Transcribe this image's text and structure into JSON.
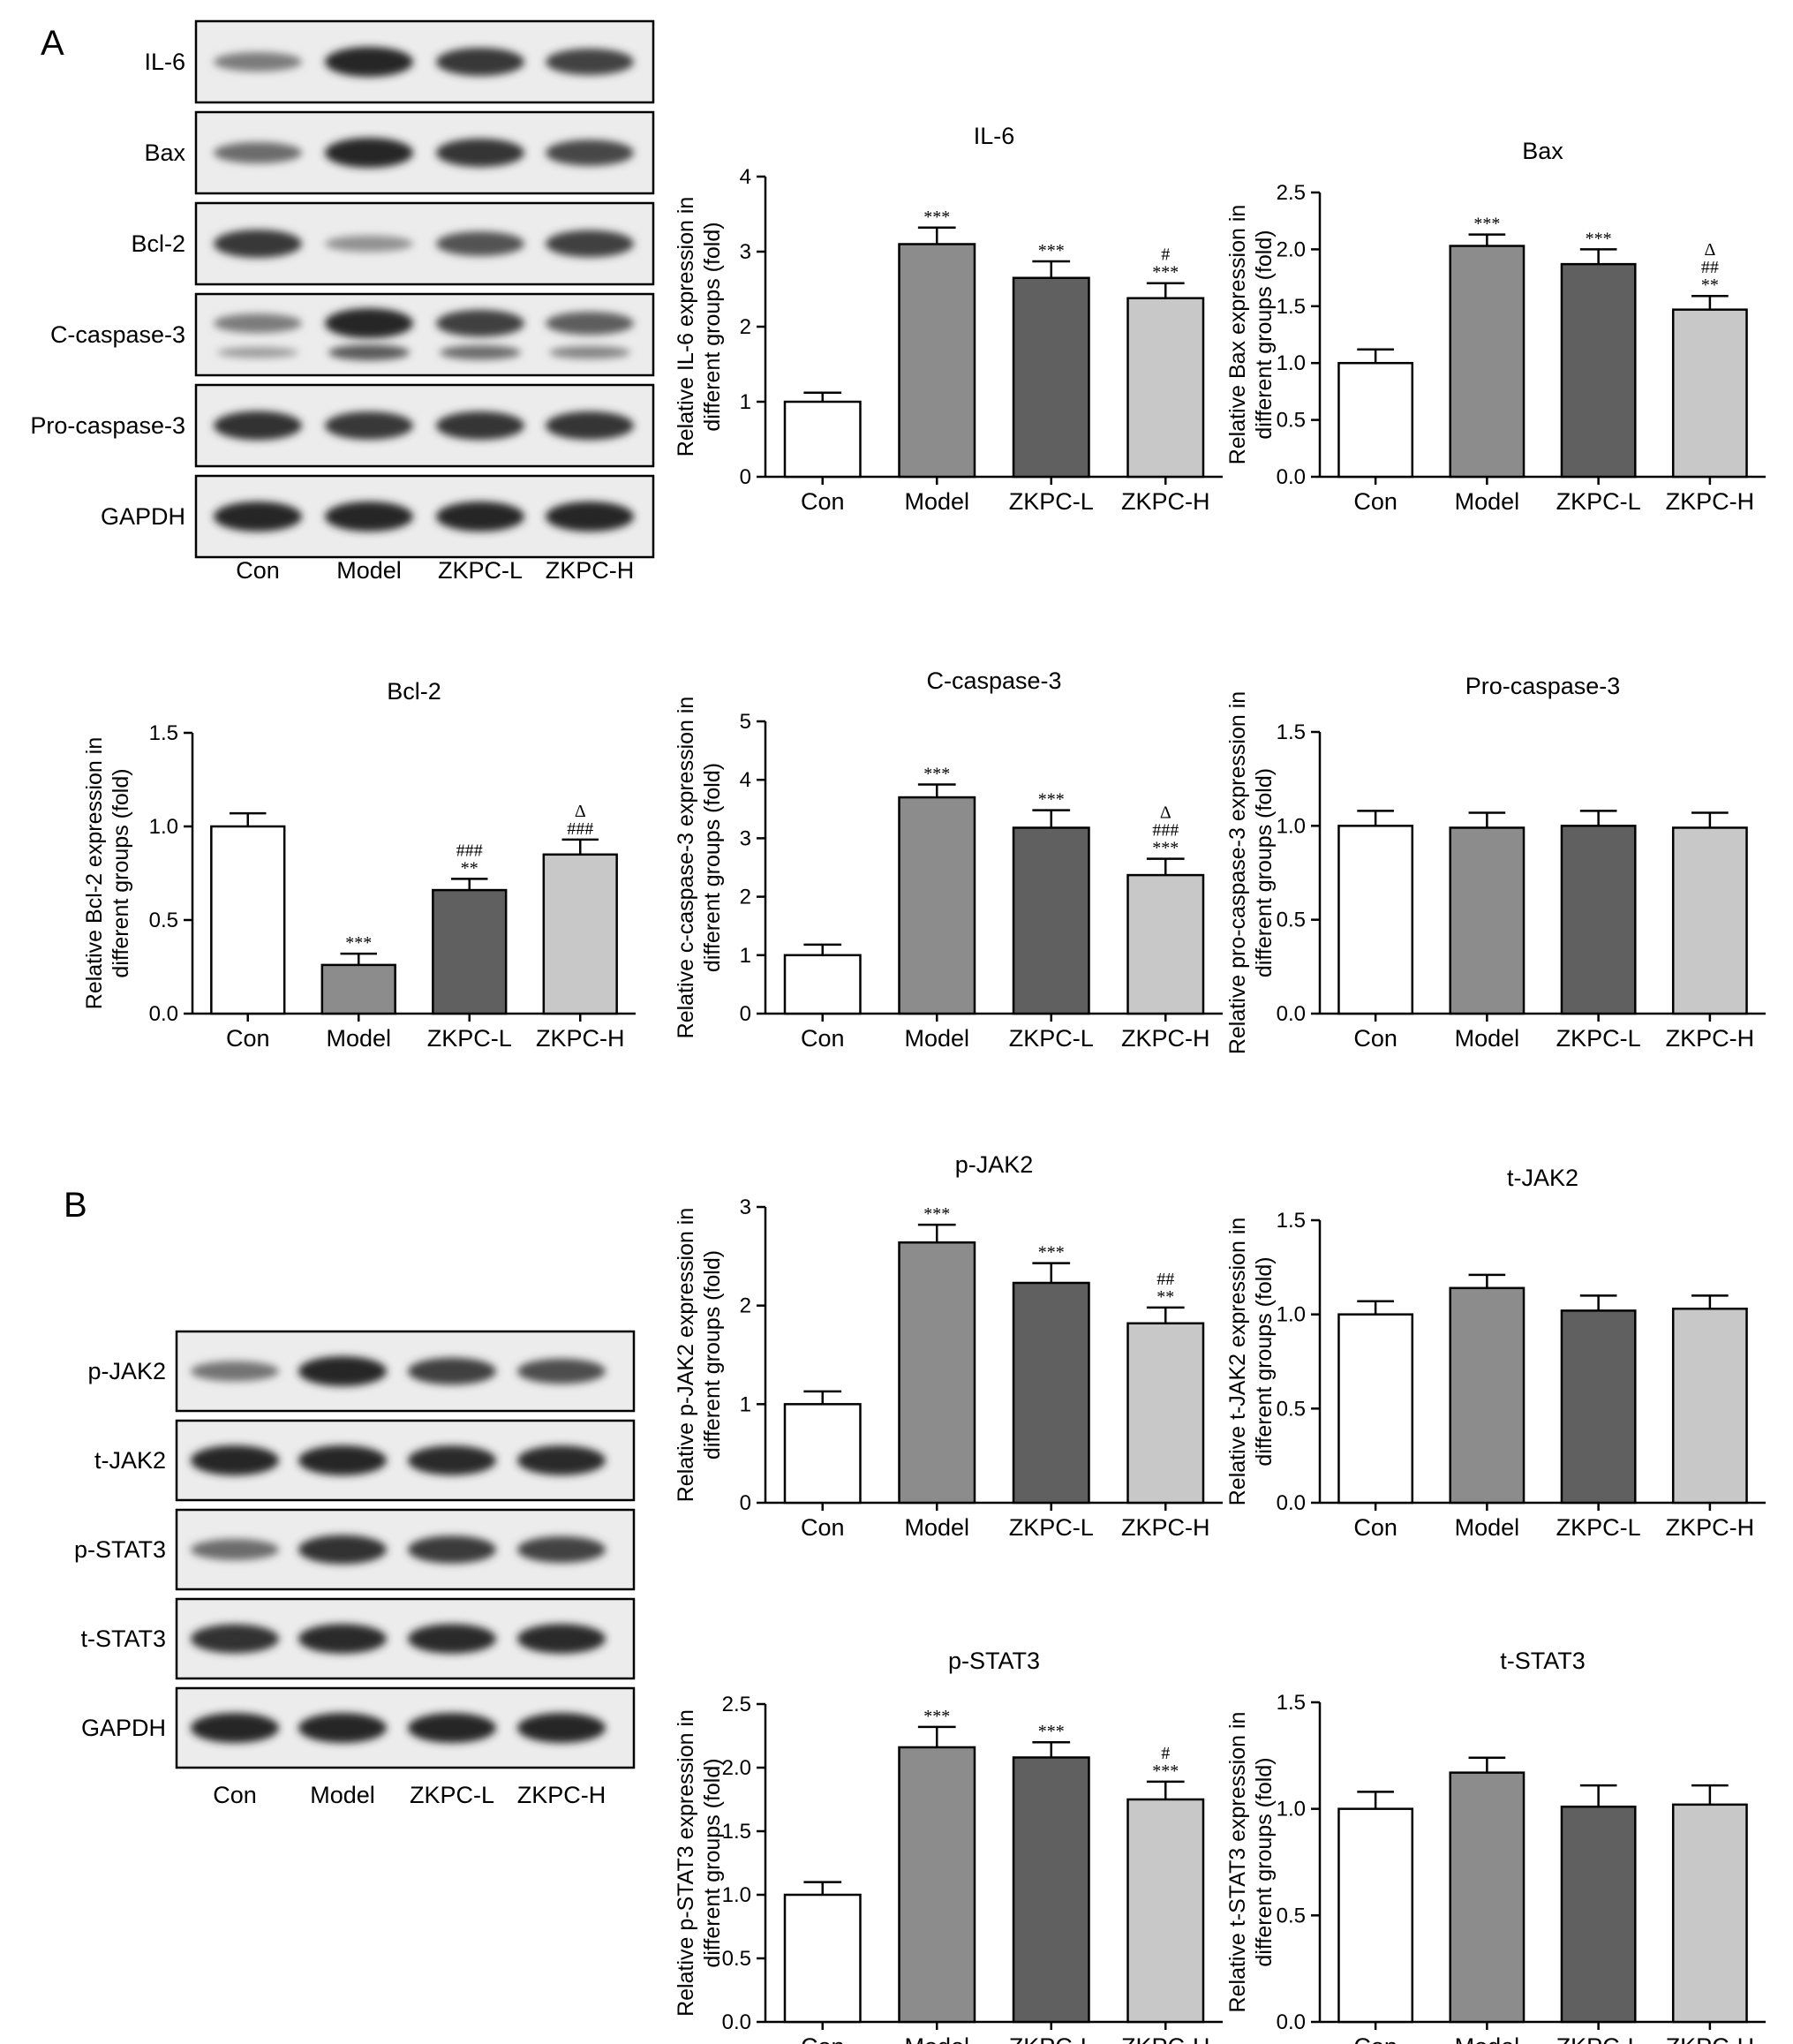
{
  "panels": {
    "A": "A",
    "B": "B"
  },
  "groups": [
    "Con",
    "Model",
    "ZKPC-L",
    "ZKPC-H"
  ],
  "bar_colors": [
    "#ffffff",
    "#8c8c8c",
    "#606060",
    "#c8c8c8"
  ],
  "blots": [
    {
      "panel": "A",
      "lane_labels": [
        "Con",
        "Model",
        "ZKPC-L",
        "ZKPC-H"
      ],
      "rows": [
        {
          "label": "IL-6",
          "intensity": [
            0.45,
            1.0,
            0.9,
            0.82
          ],
          "double": false
        },
        {
          "label": "Bax",
          "intensity": [
            0.55,
            1.0,
            0.92,
            0.8
          ],
          "double": false
        },
        {
          "label": "Bcl-2",
          "intensity": [
            0.9,
            0.3,
            0.72,
            0.85
          ],
          "double": false
        },
        {
          "label": "C-caspase-3",
          "intensity": [
            0.45,
            1.0,
            0.85,
            0.65
          ],
          "double": true
        },
        {
          "label": "Pro-caspase-3",
          "intensity": [
            0.95,
            0.9,
            0.92,
            0.92
          ],
          "double": false
        },
        {
          "label": "GAPDH",
          "intensity": [
            1.0,
            1.0,
            1.0,
            1.0
          ],
          "double": false
        }
      ]
    },
    {
      "panel": "B",
      "lane_labels": [
        "Con",
        "Model",
        "ZKPC-L",
        "ZKPC-H"
      ],
      "rows": [
        {
          "label": "p-JAK2",
          "intensity": [
            0.5,
            1.0,
            0.85,
            0.75
          ],
          "double": false
        },
        {
          "label": "t-JAK2",
          "intensity": [
            1.0,
            1.0,
            0.98,
            0.98
          ],
          "double": false
        },
        {
          "label": "p-STAT3",
          "intensity": [
            0.55,
            0.95,
            0.88,
            0.82
          ],
          "double": false
        },
        {
          "label": "t-STAT3",
          "intensity": [
            0.95,
            0.98,
            0.98,
            0.98
          ],
          "double": false
        },
        {
          "label": "GAPDH",
          "intensity": [
            1.0,
            1.0,
            1.0,
            1.0
          ],
          "double": false
        }
      ]
    }
  ],
  "chart_data": [
    {
      "type": "bar",
      "title": "IL-6",
      "ylabel": [
        "Relative IL-6 expression in",
        "different groups (fold)"
      ],
      "categories": [
        "Con",
        "Model",
        "ZKPC-L",
        "ZKPC-H"
      ],
      "values": [
        1.0,
        3.1,
        2.65,
        2.38
      ],
      "errors": [
        0.12,
        0.22,
        0.22,
        0.2
      ],
      "ylim": [
        0,
        4
      ],
      "yticks": [
        "0",
        "1",
        "2",
        "3",
        "4"
      ],
      "annotations": [
        [],
        [
          "***"
        ],
        [
          "***"
        ],
        [
          "***",
          "#"
        ]
      ]
    },
    {
      "type": "bar",
      "title": "Bax",
      "ylabel": [
        "Relative Bax expression in",
        "different groups (fold)"
      ],
      "categories": [
        "Con",
        "Model",
        "ZKPC-L",
        "ZKPC-H"
      ],
      "values": [
        1.0,
        2.03,
        1.87,
        1.47
      ],
      "errors": [
        0.12,
        0.1,
        0.13,
        0.12
      ],
      "ylim": [
        0,
        2.5
      ],
      "yticks": [
        "0.0",
        "0.5",
        "1.0",
        "1.5",
        "2.0",
        "2.5"
      ],
      "annotations": [
        [],
        [
          "***"
        ],
        [
          "***"
        ],
        [
          "**",
          "##",
          "Δ"
        ]
      ]
    },
    {
      "type": "bar",
      "title": "Bcl-2",
      "ylabel": [
        "Relative Bcl-2 expression in",
        "different groups (fold)"
      ],
      "categories": [
        "Con",
        "Model",
        "ZKPC-L",
        "ZKPC-H"
      ],
      "values": [
        1.0,
        0.26,
        0.66,
        0.85
      ],
      "errors": [
        0.07,
        0.06,
        0.06,
        0.08
      ],
      "ylim": [
        0,
        1.5
      ],
      "yticks": [
        "0.0",
        "0.5",
        "1.0",
        "1.5"
      ],
      "annotations": [
        [],
        [
          "***"
        ],
        [
          "**",
          "###"
        ],
        [
          "###",
          "Δ"
        ]
      ]
    },
    {
      "type": "bar",
      "title": "C-caspase-3",
      "ylabel": [
        "Relative c-caspase-3 expression in",
        "different groups (fold)"
      ],
      "categories": [
        "Con",
        "Model",
        "ZKPC-L",
        "ZKPC-H"
      ],
      "values": [
        1.0,
        3.7,
        3.18,
        2.37
      ],
      "errors": [
        0.18,
        0.22,
        0.3,
        0.28
      ],
      "ylim": [
        0,
        5
      ],
      "yticks": [
        "0",
        "1",
        "2",
        "3",
        "4",
        "5"
      ],
      "annotations": [
        [],
        [
          "***"
        ],
        [
          "***"
        ],
        [
          "***",
          "###",
          "Δ"
        ]
      ]
    },
    {
      "type": "bar",
      "title": "Pro-caspase-3",
      "ylabel": [
        "Relative pro-caspase-3 expression in",
        "different groups (fold)"
      ],
      "categories": [
        "Con",
        "Model",
        "ZKPC-L",
        "ZKPC-H"
      ],
      "values": [
        1.0,
        0.99,
        1.0,
        0.99
      ],
      "errors": [
        0.08,
        0.08,
        0.08,
        0.08
      ],
      "ylim": [
        0,
        1.5
      ],
      "yticks": [
        "0.0",
        "0.5",
        "1.0",
        "1.5"
      ],
      "annotations": [
        [],
        [],
        [],
        []
      ]
    },
    {
      "type": "bar",
      "title": "p-JAK2",
      "ylabel": [
        "Relative p-JAK2 expression in",
        "different groups (fold)"
      ],
      "categories": [
        "Con",
        "Model",
        "ZKPC-L",
        "ZKPC-H"
      ],
      "values": [
        1.0,
        2.64,
        2.23,
        1.82
      ],
      "errors": [
        0.13,
        0.18,
        0.2,
        0.16
      ],
      "ylim": [
        0,
        3
      ],
      "yticks": [
        "0",
        "1",
        "2",
        "3"
      ],
      "annotations": [
        [],
        [
          "***"
        ],
        [
          "***"
        ],
        [
          "**",
          "##"
        ]
      ]
    },
    {
      "type": "bar",
      "title": "t-JAK2",
      "ylabel": [
        "Relative t-JAK2 expression in",
        "different groups (fold)"
      ],
      "categories": [
        "Con",
        "Model",
        "ZKPC-L",
        "ZKPC-H"
      ],
      "values": [
        1.0,
        1.14,
        1.02,
        1.03
      ],
      "errors": [
        0.07,
        0.07,
        0.08,
        0.07
      ],
      "ylim": [
        0,
        1.5
      ],
      "yticks": [
        "0.0",
        "0.5",
        "1.0",
        "1.5"
      ],
      "annotations": [
        [],
        [],
        [],
        []
      ]
    },
    {
      "type": "bar",
      "title": "p-STAT3",
      "ylabel": [
        "Relative p-STAT3 expression in",
        "different groups (fold)"
      ],
      "categories": [
        "Con",
        "Model",
        "ZKPC-L",
        "ZKPC-H"
      ],
      "values": [
        1.0,
        2.16,
        2.08,
        1.75
      ],
      "errors": [
        0.1,
        0.16,
        0.12,
        0.14
      ],
      "ylim": [
        0,
        2.5
      ],
      "yticks": [
        "0.0",
        "0.5",
        "1.0",
        "1.5",
        "2.0",
        "2.5"
      ],
      "annotations": [
        [],
        [
          "***"
        ],
        [
          "***"
        ],
        [
          "***",
          "#"
        ]
      ]
    },
    {
      "type": "bar",
      "title": "t-STAT3",
      "ylabel": [
        "Relative t-STAT3 expression in",
        "different groups (fold)"
      ],
      "categories": [
        "Con",
        "Model",
        "ZKPC-L",
        "ZKPC-H"
      ],
      "values": [
        1.0,
        1.17,
        1.01,
        1.02
      ],
      "errors": [
        0.08,
        0.07,
        0.1,
        0.09
      ],
      "ylim": [
        0,
        1.5
      ],
      "yticks": [
        "0.0",
        "0.5",
        "1.0",
        "1.5"
      ],
      "annotations": [
        [],
        [],
        [],
        []
      ]
    }
  ]
}
